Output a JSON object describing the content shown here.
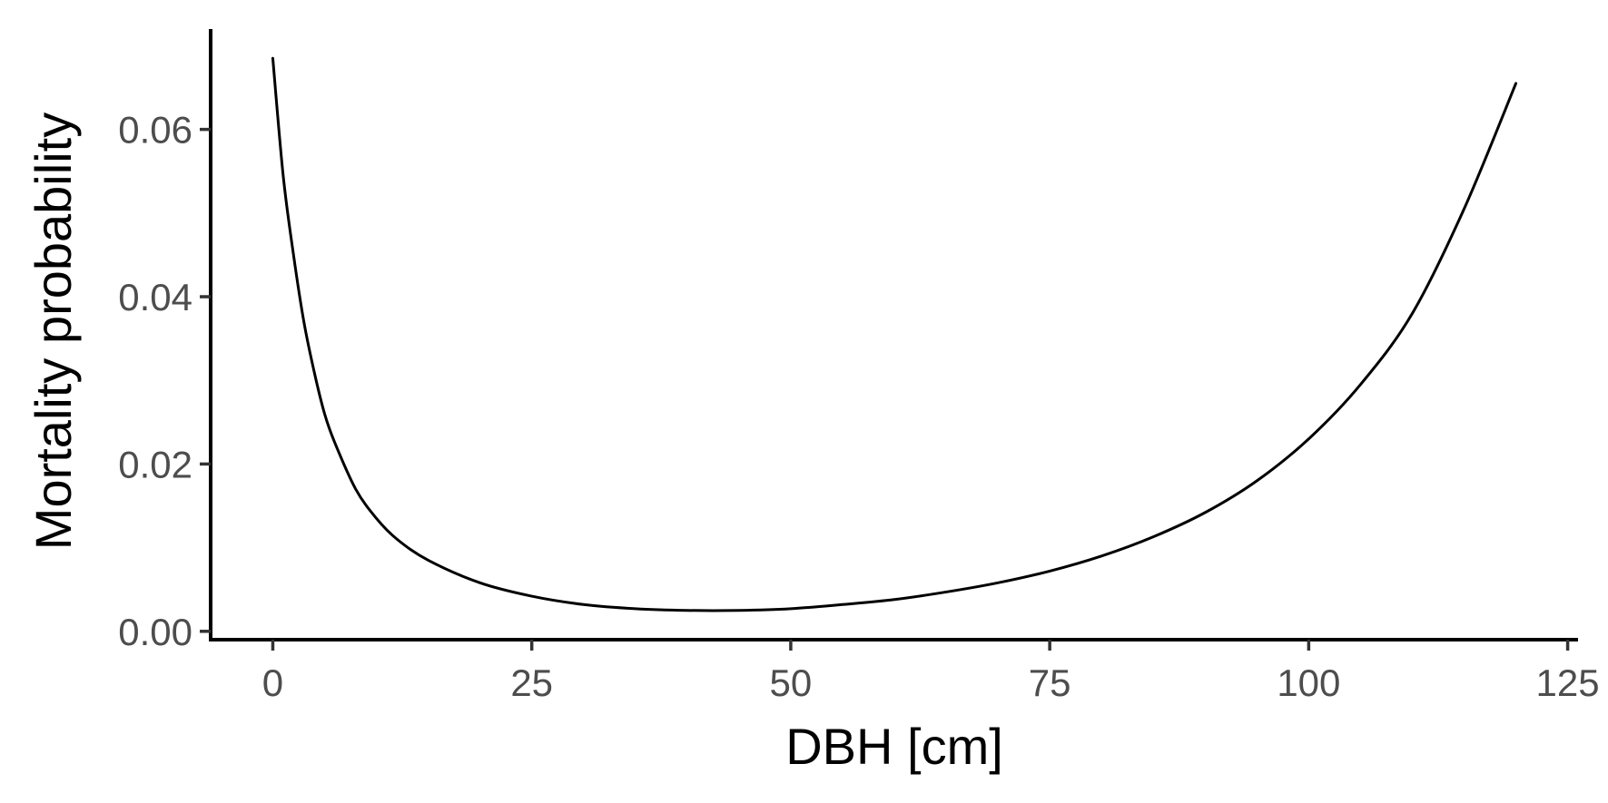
{
  "chart_data": {
    "type": "line",
    "title": "",
    "xlabel": "DBH [cm]",
    "ylabel": "Mortality probability",
    "xlim": [
      -6,
      126
    ],
    "ylim": [
      -0.001,
      0.072
    ],
    "x_ticks": [
      0,
      25,
      50,
      75,
      100,
      125
    ],
    "x_tick_labels": [
      "0",
      "25",
      "50",
      "75",
      "100",
      "125"
    ],
    "y_ticks": [
      0.0,
      0.02,
      0.04,
      0.06
    ],
    "y_tick_labels": [
      "0.00",
      "0.02",
      "0.04",
      "0.06"
    ],
    "grid": false,
    "series": [
      {
        "color": "#000000",
        "x": [
          0,
          1,
          2,
          3,
          4,
          5,
          6,
          8,
          10,
          12,
          15,
          20,
          25,
          30,
          35,
          40,
          45,
          50,
          55,
          60,
          65,
          70,
          75,
          80,
          85,
          90,
          95,
          100,
          105,
          110,
          115,
          120
        ],
        "y": [
          0.0685,
          0.0545,
          0.045,
          0.037,
          0.031,
          0.026,
          0.0225,
          0.017,
          0.0135,
          0.011,
          0.0085,
          0.0058,
          0.0042,
          0.0032,
          0.0027,
          0.0025,
          0.0025,
          0.0027,
          0.0032,
          0.0038,
          0.0047,
          0.0058,
          0.0072,
          0.009,
          0.0113,
          0.0142,
          0.018,
          0.023,
          0.0295,
          0.038,
          0.0505,
          0.0655
        ]
      }
    ]
  }
}
